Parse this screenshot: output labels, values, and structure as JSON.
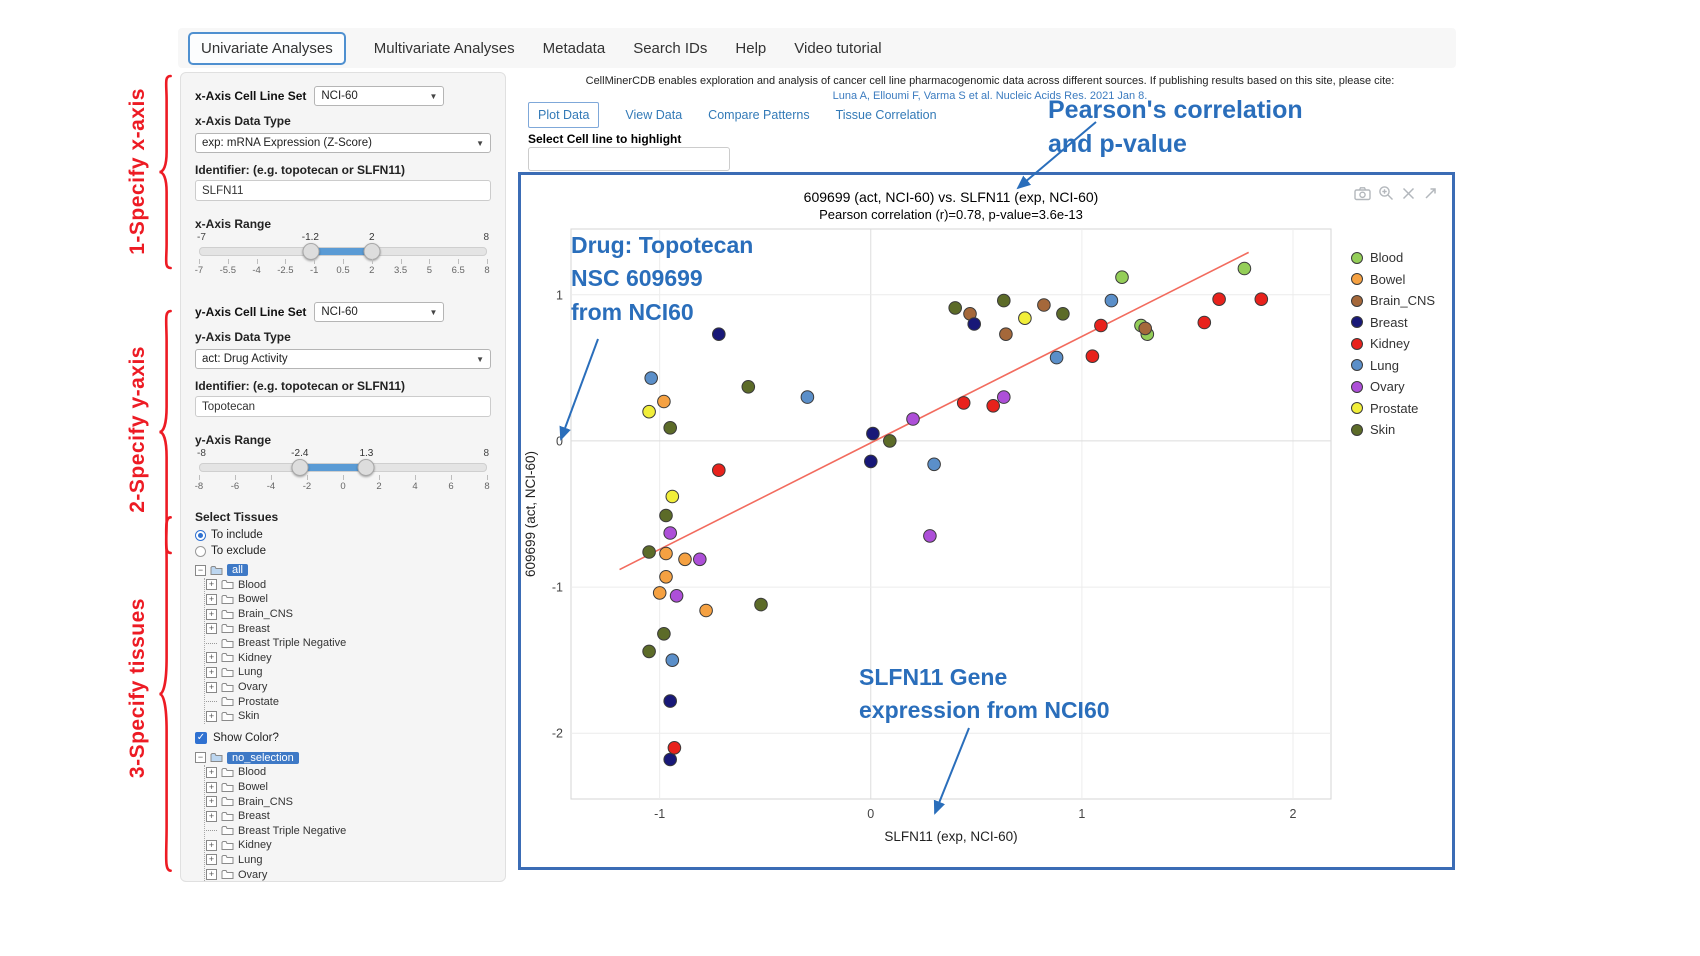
{
  "nav": {
    "items": [
      {
        "label": "Univariate Analyses",
        "active": true
      },
      {
        "label": "Multivariate Analyses",
        "active": false
      },
      {
        "label": "Metadata",
        "active": false
      },
      {
        "label": "Search IDs",
        "active": false
      },
      {
        "label": "Help",
        "active": false
      },
      {
        "label": "Video tutorial",
        "active": false
      }
    ]
  },
  "annotations": {
    "step1": "1-Specify x-axis",
    "step2": "2-Specify y-axis",
    "step3": "3-Specify tissues",
    "pearson_line1": "Pearson's correlation",
    "pearson_line2": "and p-value",
    "drug_line1": "Drug: Topotecan",
    "drug_line2": "NSC 609699",
    "drug_line3": "from NCI60",
    "gene_line1": "SLFN11 Gene",
    "gene_line2": "expression from NCI60"
  },
  "sidebar": {
    "x_cell_line_label": "x-Axis Cell Line Set",
    "x_cell_line_value": "NCI-60",
    "x_data_type_label": "x-Axis Data Type",
    "x_data_type_value": "exp: mRNA Expression (Z-Score)",
    "x_identifier_label": "Identifier: (e.g. topotecan or SLFN11)",
    "x_identifier_value": "SLFN11",
    "x_range_label": "x-Axis Range",
    "x_slider": {
      "min": -7,
      "max": 8,
      "from_val": -1.2,
      "to_val": 2,
      "min_label": "-7",
      "max_label": "8",
      "from": "-1.2",
      "to": "2",
      "ticks": [
        "-7",
        "-5.5",
        "-4",
        "-2.5",
        "-1",
        "0.5",
        "2",
        "3.5",
        "5",
        "6.5",
        "8"
      ]
    },
    "y_cell_line_label": "y-Axis Cell Line Set",
    "y_cell_line_value": "NCI-60",
    "y_data_type_label": "y-Axis Data Type",
    "y_data_type_value": "act: Drug Activity",
    "y_identifier_label": "Identifier: (e.g. topotecan or SLFN11)",
    "y_identifier_value": "Topotecan",
    "y_range_label": "y-Axis Range",
    "y_slider": {
      "min": -8,
      "max": 8,
      "from_val": -2.4,
      "to_val": 1.3,
      "min_label": "-8",
      "max_label": "8",
      "from": "-2.4",
      "to": "1.3",
      "ticks": [
        "-8",
        "-6",
        "-4",
        "-2",
        "0",
        "2",
        "4",
        "6",
        "8"
      ]
    },
    "select_tissues_label": "Select Tissues",
    "radio_include": "To include",
    "radio_exclude": "To exclude",
    "tree1_root": "all",
    "tree2_root": "no_selection",
    "show_color_label": "Show Color?",
    "tissues": [
      {
        "label": "Blood",
        "expandable": true
      },
      {
        "label": "Bowel",
        "expandable": true
      },
      {
        "label": "Brain_CNS",
        "expandable": true
      },
      {
        "label": "Breast",
        "expandable": true
      },
      {
        "label": "Breast Triple Negative",
        "expandable": false
      },
      {
        "label": "Kidney",
        "expandable": true
      },
      {
        "label": "Lung",
        "expandable": true
      },
      {
        "label": "Ovary",
        "expandable": true
      },
      {
        "label": "Prostate",
        "expandable": false
      },
      {
        "label": "Skin",
        "expandable": true
      }
    ]
  },
  "main": {
    "citation_text": "CellMinerCDB enables exploration and analysis of cancer cell line pharmacogenomic data across different sources. If publishing results based on this site, please cite:",
    "citation_link": "Luna A, Elloumi F, Varma S et al. Nucleic Acids Res. 2021 Jan 8.",
    "tabs": [
      "Plot Data",
      "View Data",
      "Compare Patterns",
      "Tissue Correlation"
    ],
    "highlight_label": "Select Cell line to highlight"
  },
  "chart_data": {
    "type": "scatter",
    "title": "609699 (act, NCI-60) vs. SLFN11 (exp, NCI-60)",
    "subtitle": "Pearson correlation (r)=0.78, p-value=3.6e-13",
    "pearson_r": 0.78,
    "p_value": "3.6e-13",
    "xlabel": "SLFN11 (exp, NCI-60)",
    "ylabel": "609699 (act, NCI-60)",
    "xlim": [
      -1.42,
      2.18
    ],
    "ylim": [
      -2.45,
      1.45
    ],
    "xticks": [
      -1,
      0,
      1,
      2
    ],
    "yticks": [
      -2,
      -1,
      0,
      1
    ],
    "grid": true,
    "legend_position": "right",
    "trendline": {
      "color": "#f26b5e",
      "x": [
        -1.19,
        1.79
      ],
      "y": [
        -0.88,
        1.29
      ]
    },
    "series": [
      {
        "name": "Blood",
        "color": "#94ce58",
        "points": [
          [
            1.19,
            1.12
          ],
          [
            1.28,
            0.79
          ],
          [
            1.31,
            0.73
          ],
          [
            1.77,
            1.18
          ]
        ]
      },
      {
        "name": "Bowel",
        "color": "#f5a142",
        "points": [
          [
            -0.98,
            0.27
          ],
          [
            -0.97,
            -0.77
          ],
          [
            -0.88,
            -0.81
          ],
          [
            -0.97,
            -0.93
          ],
          [
            -1.0,
            -1.04
          ],
          [
            -0.78,
            -1.16
          ]
        ]
      },
      {
        "name": "Brain_CNS",
        "color": "#a5683a",
        "points": [
          [
            0.47,
            0.87
          ],
          [
            0.64,
            0.73
          ],
          [
            0.82,
            0.93
          ],
          [
            1.3,
            0.77
          ]
        ]
      },
      {
        "name": "Breast",
        "color": "#181878",
        "points": [
          [
            -0.72,
            0.73
          ],
          [
            0.49,
            0.8
          ],
          [
            0.01,
            0.05
          ],
          [
            0.0,
            -0.14
          ],
          [
            -0.95,
            -1.78
          ],
          [
            -0.95,
            -2.18
          ]
        ]
      },
      {
        "name": "Kidney",
        "color": "#e8221c",
        "points": [
          [
            0.44,
            0.26
          ],
          [
            0.58,
            0.24
          ],
          [
            1.05,
            0.58
          ],
          [
            1.09,
            0.79
          ],
          [
            1.58,
            0.81
          ],
          [
            1.65,
            0.97
          ],
          [
            1.85,
            0.97
          ],
          [
            -0.72,
            -0.2
          ],
          [
            -0.93,
            -2.1
          ]
        ]
      },
      {
        "name": "Lung",
        "color": "#5b8fc9",
        "points": [
          [
            -1.04,
            0.43
          ],
          [
            -0.3,
            0.3
          ],
          [
            0.88,
            0.57
          ],
          [
            1.14,
            0.96
          ],
          [
            0.3,
            -0.16
          ],
          [
            -0.94,
            -1.5
          ]
        ]
      },
      {
        "name": "Ovary",
        "color": "#ad4fd8",
        "points": [
          [
            0.2,
            0.15
          ],
          [
            0.63,
            0.3
          ],
          [
            0.28,
            -0.65
          ],
          [
            -0.95,
            -0.63
          ],
          [
            -0.81,
            -0.81
          ],
          [
            -0.92,
            -1.06
          ]
        ]
      },
      {
        "name": "Prostate",
        "color": "#f1ee3a",
        "points": [
          [
            0.73,
            0.84
          ],
          [
            -1.05,
            0.2
          ],
          [
            -0.94,
            -0.38
          ]
        ]
      },
      {
        "name": "Skin",
        "color": "#5c6b28",
        "points": [
          [
            0.4,
            0.91
          ],
          [
            0.63,
            0.96
          ],
          [
            0.91,
            0.87
          ],
          [
            -0.58,
            0.37
          ],
          [
            -0.95,
            0.09
          ],
          [
            0.09,
            0.0
          ],
          [
            -0.97,
            -0.51
          ],
          [
            -1.05,
            -0.76
          ],
          [
            -0.52,
            -1.12
          ],
          [
            -0.98,
            -1.32
          ],
          [
            -1.05,
            -1.44
          ]
        ]
      }
    ]
  }
}
